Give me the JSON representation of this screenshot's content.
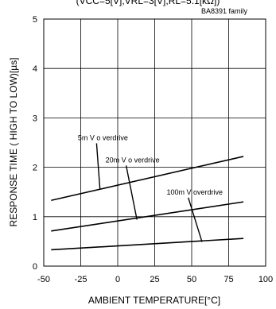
{
  "chart_data": {
    "type": "line",
    "title": "(VCC=5[V],VRL=3[V],RL=5.1[kΩ])",
    "subtitle": "BA8391 family",
    "xlabel": "AMBIENT TEMPERATURE[°C]",
    "ylabel": "RESPONSE TIME ( HIGH TO LOW)[µs]",
    "xlim": [
      -50,
      100
    ],
    "ylim": [
      0,
      5
    ],
    "x_ticks": [
      "-50",
      "-25",
      "0",
      "25",
      "50",
      "75",
      "100"
    ],
    "y_ticks": [
      "0",
      "1",
      "2",
      "3",
      "4",
      "5"
    ],
    "grid": true,
    "series": [
      {
        "name": "5mV overdrive",
        "x": [
          -45,
          85
        ],
        "y": [
          1.33,
          2.22
        ]
      },
      {
        "name": "20mV overdrive",
        "x": [
          -45,
          85
        ],
        "y": [
          0.71,
          1.3
        ]
      },
      {
        "name": "100mV overdrive",
        "x": [
          -45,
          85
        ],
        "y": [
          0.33,
          0.56
        ]
      }
    ],
    "annotations": [
      {
        "text": "5m V o verdrive",
        "series": 0,
        "x": -10,
        "y": 2.55,
        "target": [
          -12,
          1.56
        ]
      },
      {
        "text": "20m V o verdrive",
        "series": 1,
        "x": 10,
        "y": 2.1,
        "target": [
          13,
          0.94
        ]
      },
      {
        "text": "100m V overdrive",
        "series": 2,
        "x": 52,
        "y": 1.45,
        "target": [
          57,
          0.49
        ]
      }
    ]
  }
}
